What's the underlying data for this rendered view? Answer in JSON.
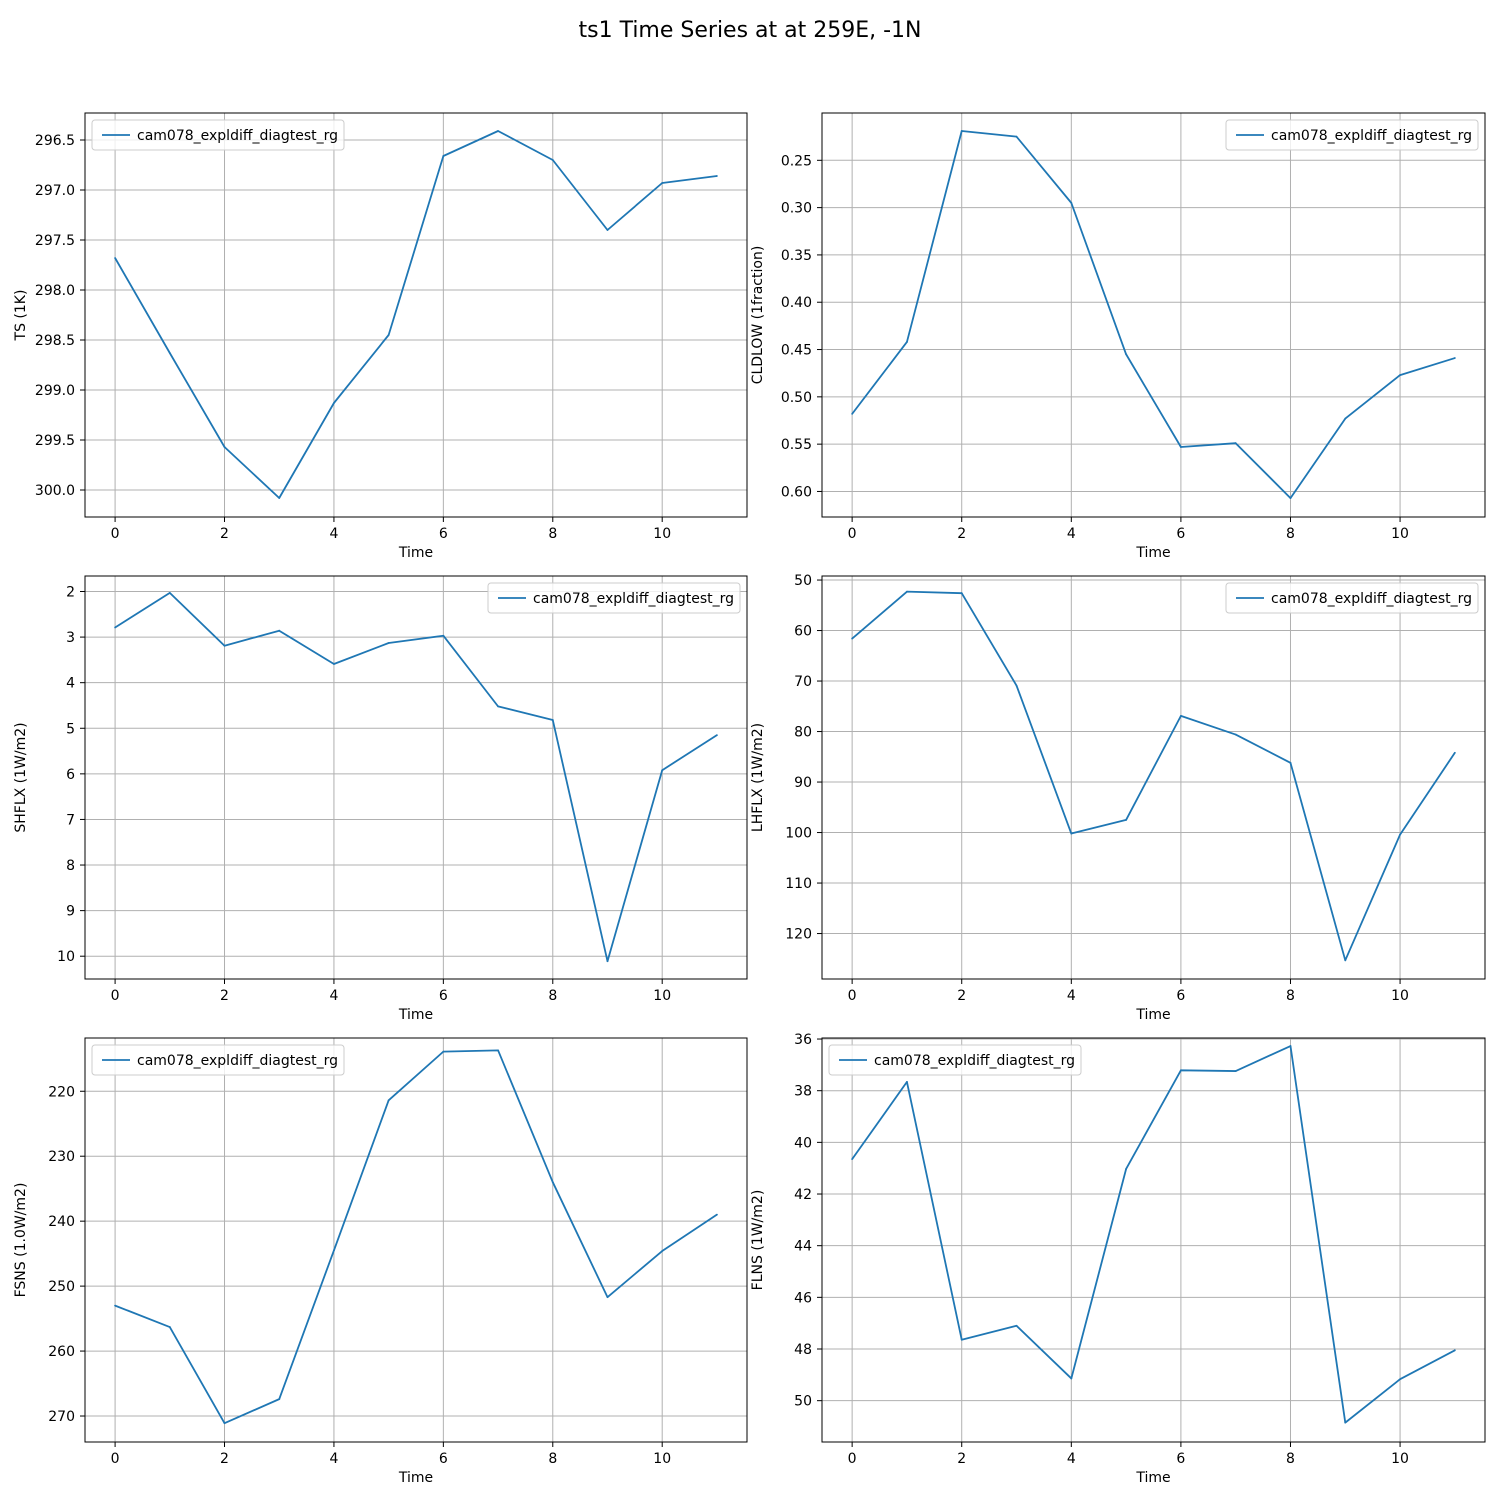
{
  "figure": {
    "title": "ts1 Time Series at at 259E, -1N",
    "line_color": "#1f77b4"
  },
  "chart_data": [
    {
      "type": "line",
      "xlabel": "Time",
      "ylabel": "TS (1K)",
      "y_inverted": true,
      "grid": true,
      "legend_position": "upper-left",
      "xlim": [
        -0.55,
        11.55
      ],
      "ylim": [
        300.27,
        296.23
      ],
      "xticks": [
        0,
        2,
        4,
        6,
        8,
        10
      ],
      "yticks": [
        296.5,
        297.0,
        297.5,
        298.0,
        298.5,
        299.0,
        299.5,
        300.0
      ],
      "ytick_labels": [
        "296.5",
        "297.0",
        "297.5",
        "298.0",
        "298.5",
        "299.0",
        "299.5",
        "300.0"
      ],
      "x": [
        0,
        1,
        2,
        3,
        4,
        5,
        6,
        7,
        8,
        9,
        10,
        11
      ],
      "series": [
        {
          "name": "cam078_expldiff_diagtest_rg",
          "values": [
            297.68,
            298.63,
            299.57,
            300.08,
            299.13,
            298.45,
            296.66,
            296.41,
            296.7,
            297.4,
            296.93,
            296.86
          ]
        }
      ]
    },
    {
      "type": "line",
      "xlabel": "Time",
      "ylabel": "CLDLOW (1fraction)",
      "y_inverted": true,
      "grid": true,
      "legend_position": "upper-right",
      "xlim": [
        -0.55,
        11.55
      ],
      "ylim": [
        0.627,
        0.2
      ],
      "xticks": [
        0,
        2,
        4,
        6,
        8,
        10
      ],
      "yticks": [
        0.25,
        0.3,
        0.35,
        0.4,
        0.45,
        0.5,
        0.55,
        0.6
      ],
      "ytick_labels": [
        "0.25",
        "0.30",
        "0.35",
        "0.40",
        "0.45",
        "0.50",
        "0.55",
        "0.60"
      ],
      "x": [
        0,
        1,
        2,
        3,
        4,
        5,
        6,
        7,
        8,
        9,
        10,
        11
      ],
      "series": [
        {
          "name": "cam078_expldiff_diagtest_rg",
          "values": [
            0.518,
            0.442,
            0.219,
            0.225,
            0.295,
            0.455,
            0.553,
            0.549,
            0.607,
            0.523,
            0.477,
            0.459
          ]
        }
      ]
    },
    {
      "type": "line",
      "xlabel": "Time",
      "ylabel": "SHFLX (1W/m2)",
      "y_inverted": true,
      "grid": true,
      "legend_position": "upper-right",
      "xlim": [
        -0.55,
        11.55
      ],
      "ylim": [
        10.5,
        1.66
      ],
      "xticks": [
        0,
        2,
        4,
        6,
        8,
        10
      ],
      "yticks": [
        2,
        3,
        4,
        5,
        6,
        7,
        8,
        9,
        10
      ],
      "ytick_labels": [
        "2",
        "3",
        "4",
        "5",
        "6",
        "7",
        "8",
        "9",
        "10"
      ],
      "x": [
        0,
        1,
        2,
        3,
        4,
        5,
        6,
        7,
        8,
        9,
        10,
        11
      ],
      "series": [
        {
          "name": "cam078_expldiff_diagtest_rg",
          "values": [
            2.79,
            2.03,
            3.19,
            2.86,
            3.59,
            3.13,
            2.97,
            4.52,
            4.82,
            10.11,
            5.92,
            5.15
          ]
        }
      ]
    },
    {
      "type": "line",
      "xlabel": "Time",
      "ylabel": "LHFLX (1W/m2)",
      "y_inverted": true,
      "grid": true,
      "legend_position": "upper-right",
      "xlim": [
        -0.55,
        11.55
      ],
      "ylim": [
        129.0,
        49.2
      ],
      "xticks": [
        0,
        2,
        4,
        6,
        8,
        10
      ],
      "yticks": [
        50,
        60,
        70,
        80,
        90,
        100,
        110,
        120
      ],
      "ytick_labels": [
        "50",
        "60",
        "70",
        "80",
        "90",
        "100",
        "110",
        "120"
      ],
      "x": [
        0,
        1,
        2,
        3,
        4,
        5,
        6,
        7,
        8,
        9,
        10,
        11
      ],
      "series": [
        {
          "name": "cam078_expldiff_diagtest_rg",
          "values": [
            61.6,
            52.3,
            52.6,
            70.9,
            100.2,
            97.5,
            76.9,
            80.6,
            86.2,
            125.3,
            100.4,
            84.2
          ]
        }
      ]
    },
    {
      "type": "line",
      "xlabel": "Time",
      "ylabel": "FSNS (1.0W/m2)",
      "y_inverted": true,
      "grid": true,
      "legend_position": "upper-left",
      "xlim": [
        -0.55,
        11.55
      ],
      "ylim": [
        274.0,
        211.8
      ],
      "xticks": [
        0,
        2,
        4,
        6,
        8,
        10
      ],
      "yticks": [
        220,
        230,
        240,
        250,
        260,
        270
      ],
      "ytick_labels": [
        "220",
        "230",
        "240",
        "250",
        "260",
        "270"
      ],
      "x": [
        0,
        1,
        2,
        3,
        4,
        5,
        6,
        7,
        8,
        9,
        10,
        11
      ],
      "series": [
        {
          "name": "cam078_expldiff_diagtest_rg",
          "values": [
            253.0,
            256.3,
            271.1,
            267.4,
            244.5,
            221.4,
            213.9,
            213.7,
            234.0,
            251.7,
            244.6,
            239.0
          ]
        }
      ]
    },
    {
      "type": "line",
      "xlabel": "Time",
      "ylabel": "FLNS (1W/m2)",
      "y_inverted": true,
      "grid": true,
      "legend_position": "upper-left",
      "xlim": [
        -0.55,
        11.55
      ],
      "ylim": [
        51.6,
        35.96
      ],
      "xticks": [
        0,
        2,
        4,
        6,
        8,
        10
      ],
      "yticks": [
        36,
        38,
        40,
        42,
        44,
        46,
        48,
        50
      ],
      "ytick_labels": [
        "36",
        "38",
        "40",
        "42",
        "44",
        "46",
        "48",
        "50"
      ],
      "x": [
        0,
        1,
        2,
        3,
        4,
        5,
        6,
        7,
        8,
        9,
        10,
        11
      ],
      "series": [
        {
          "name": "cam078_expldiff_diagtest_rg",
          "values": [
            40.65,
            37.66,
            47.64,
            47.1,
            49.14,
            41.03,
            37.21,
            37.24,
            36.27,
            50.85,
            49.17,
            48.05
          ]
        }
      ]
    }
  ]
}
